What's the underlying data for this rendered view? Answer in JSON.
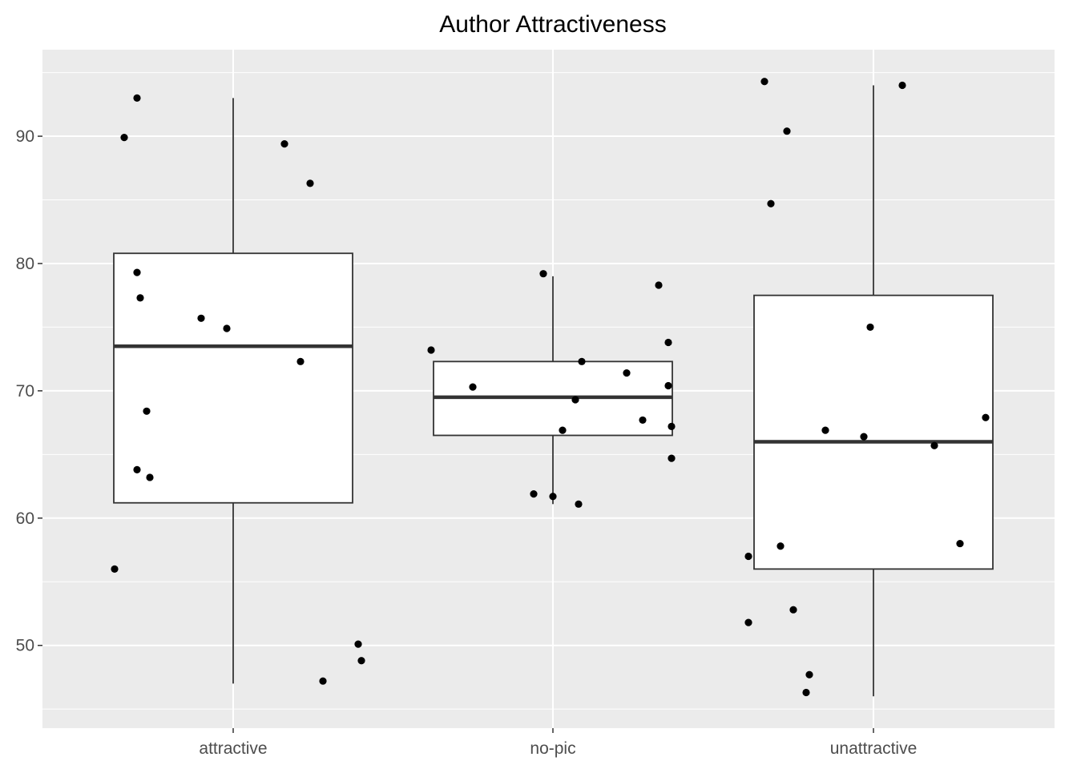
{
  "chart_data": {
    "type": "boxplot",
    "title": "Author Attractiveness",
    "xlabel": "",
    "ylabel": "",
    "ylim": [
      43.5,
      96.8
    ],
    "y_ticks": [
      50,
      60,
      70,
      80,
      90
    ],
    "grid": true,
    "legend": "none",
    "colors": {
      "panel": "#EBEBEB",
      "grid": "#FFFFFF",
      "box_fill": "#FFFFFF",
      "box_line": "#333333",
      "point": "#000000",
      "tick_text": "#4D4D4D"
    },
    "categories": [
      "attractive",
      "no-pic",
      "unattractive"
    ],
    "boxes": [
      {
        "category": "attractive",
        "min": 47,
        "q1": 61.2,
        "median": 73.5,
        "q3": 80.8,
        "max": 93
      },
      {
        "category": "no-pic",
        "min": 61.1,
        "q1": 66.5,
        "median": 69.5,
        "q3": 72.3,
        "max": 79
      },
      {
        "category": "unattractive",
        "min": 46,
        "q1": 56,
        "median": 66,
        "q3": 77.5,
        "max": 94
      }
    ],
    "points": [
      [
        {
          "jitter": -0.37,
          "y": 56.0
        },
        {
          "jitter": -0.34,
          "y": 89.9
        },
        {
          "jitter": -0.3,
          "y": 93.0
        },
        {
          "jitter": -0.3,
          "y": 63.8
        },
        {
          "jitter": -0.3,
          "y": 79.3
        },
        {
          "jitter": -0.29,
          "y": 77.3
        },
        {
          "jitter": -0.27,
          "y": 68.4
        },
        {
          "jitter": -0.26,
          "y": 63.2
        },
        {
          "jitter": -0.1,
          "y": 75.7
        },
        {
          "jitter": -0.02,
          "y": 74.9
        },
        {
          "jitter": 0.16,
          "y": 89.4
        },
        {
          "jitter": 0.21,
          "y": 72.3
        },
        {
          "jitter": 0.24,
          "y": 86.3
        },
        {
          "jitter": 0.28,
          "y": 47.2
        },
        {
          "jitter": 0.39,
          "y": 50.1
        },
        {
          "jitter": 0.4,
          "y": 48.8
        }
      ],
      [
        {
          "jitter": -0.38,
          "y": 73.2
        },
        {
          "jitter": -0.25,
          "y": 70.3
        },
        {
          "jitter": -0.06,
          "y": 61.9
        },
        {
          "jitter": -0.03,
          "y": 79.2
        },
        {
          "jitter": 0.0,
          "y": 61.7
        },
        {
          "jitter": 0.03,
          "y": 66.9
        },
        {
          "jitter": 0.07,
          "y": 69.3
        },
        {
          "jitter": 0.08,
          "y": 61.1
        },
        {
          "jitter": 0.09,
          "y": 72.3
        },
        {
          "jitter": 0.23,
          "y": 71.4
        },
        {
          "jitter": 0.28,
          "y": 67.7
        },
        {
          "jitter": 0.33,
          "y": 78.3
        },
        {
          "jitter": 0.36,
          "y": 73.8
        },
        {
          "jitter": 0.36,
          "y": 70.4
        },
        {
          "jitter": 0.37,
          "y": 67.2
        },
        {
          "jitter": 0.37,
          "y": 64.7
        }
      ],
      [
        {
          "jitter": -0.39,
          "y": 51.8
        },
        {
          "jitter": -0.39,
          "y": 57.0
        },
        {
          "jitter": -0.34,
          "y": 94.3
        },
        {
          "jitter": -0.32,
          "y": 84.7
        },
        {
          "jitter": -0.29,
          "y": 57.8
        },
        {
          "jitter": -0.27,
          "y": 90.4
        },
        {
          "jitter": -0.25,
          "y": 52.8
        },
        {
          "jitter": -0.2,
          "y": 47.7
        },
        {
          "jitter": -0.21,
          "y": 46.3
        },
        {
          "jitter": -0.15,
          "y": 66.9
        },
        {
          "jitter": -0.03,
          "y": 66.4
        },
        {
          "jitter": -0.01,
          "y": 75.0
        },
        {
          "jitter": 0.09,
          "y": 94.0
        },
        {
          "jitter": 0.19,
          "y": 65.7
        },
        {
          "jitter": 0.27,
          "y": 58.0
        },
        {
          "jitter": 0.35,
          "y": 67.9
        }
      ]
    ]
  }
}
